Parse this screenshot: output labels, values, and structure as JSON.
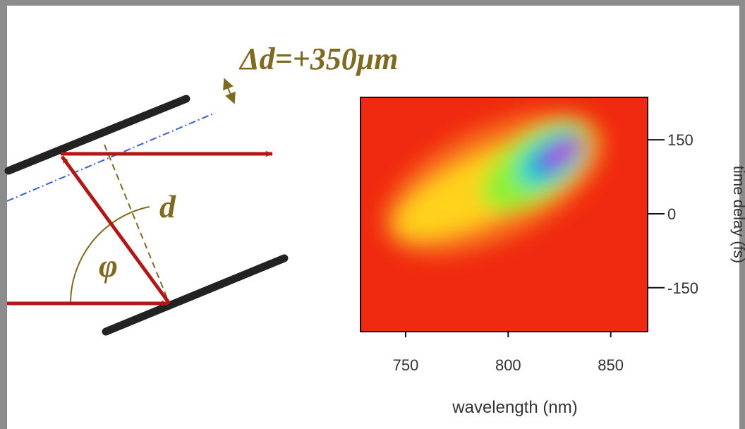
{
  "diagram": {
    "annotation": "Δd=+350μm",
    "distance_label": "d",
    "angle_label": "φ"
  },
  "plot": {
    "xlabel": "wavelength (nm)",
    "ylabel": "time delay (fs)",
    "xlim": [
      728,
      868
    ],
    "ylim": [
      -239,
      236
    ],
    "xticks": [
      750,
      800,
      850
    ],
    "yticks": [
      150,
      0,
      -150
    ]
  }
}
